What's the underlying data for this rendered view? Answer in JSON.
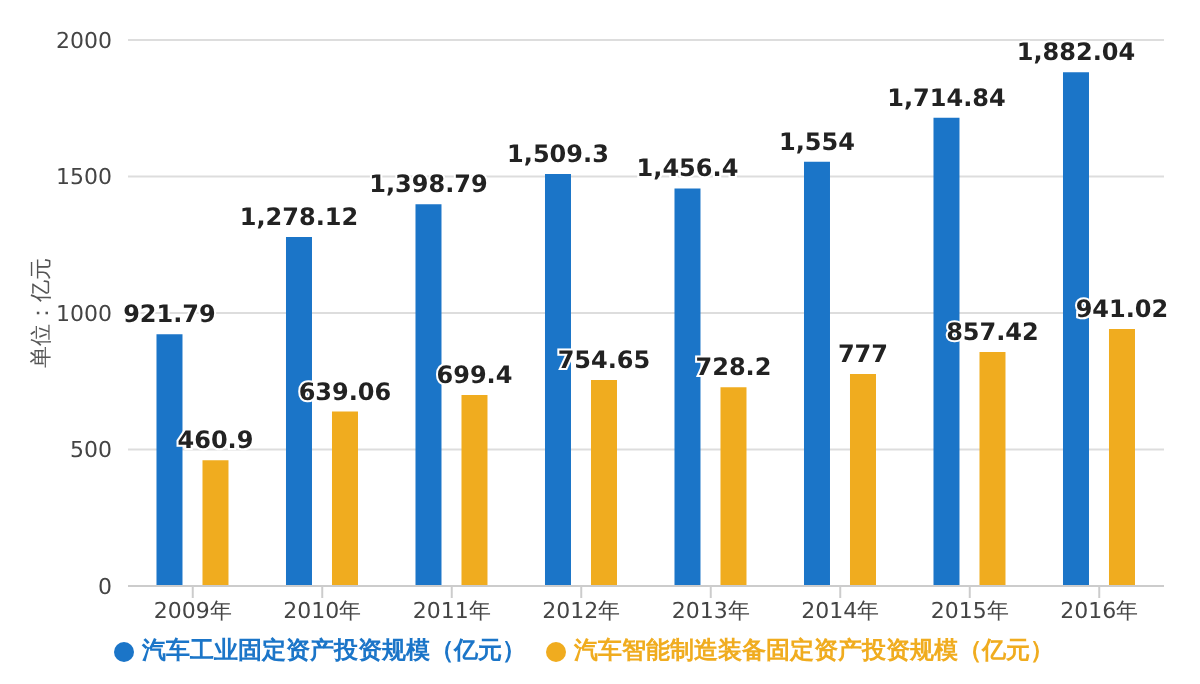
{
  "chart_data": {
    "type": "bar",
    "ylabel": "单位：亿元",
    "categories": [
      "2009年",
      "2010年",
      "2011年",
      "2012年",
      "2013年",
      "2014年",
      "2015年",
      "2016年"
    ],
    "series": [
      {
        "name": "汽车工业固定资产投资规模（亿元）",
        "color": "#1b75c8",
        "values": [
          921.79,
          1278.12,
          1398.79,
          1509.3,
          1456.4,
          1554,
          1714.84,
          1882.04
        ],
        "value_labels": [
          "921.79",
          "1,278.12",
          "1,398.79",
          "1,509.3",
          "1,456.4",
          "1,554",
          "1,714.84",
          "1,882.04"
        ]
      },
      {
        "name": "汽车智能制造装备固定资产投资规模（亿元）",
        "color": "#f0ac1f",
        "values": [
          460.9,
          639.06,
          699.4,
          754.65,
          728.2,
          777,
          857.42,
          941.02
        ],
        "value_labels": [
          "460.9",
          "639.06",
          "699.4",
          "754.65",
          "728.2",
          "777",
          "857.42",
          "941.02"
        ]
      }
    ],
    "ylim": [
      0,
      2000
    ],
    "yticks": [
      0,
      500,
      1000,
      1500,
      2000
    ],
    "grid": "y",
    "legend": "bottom"
  }
}
